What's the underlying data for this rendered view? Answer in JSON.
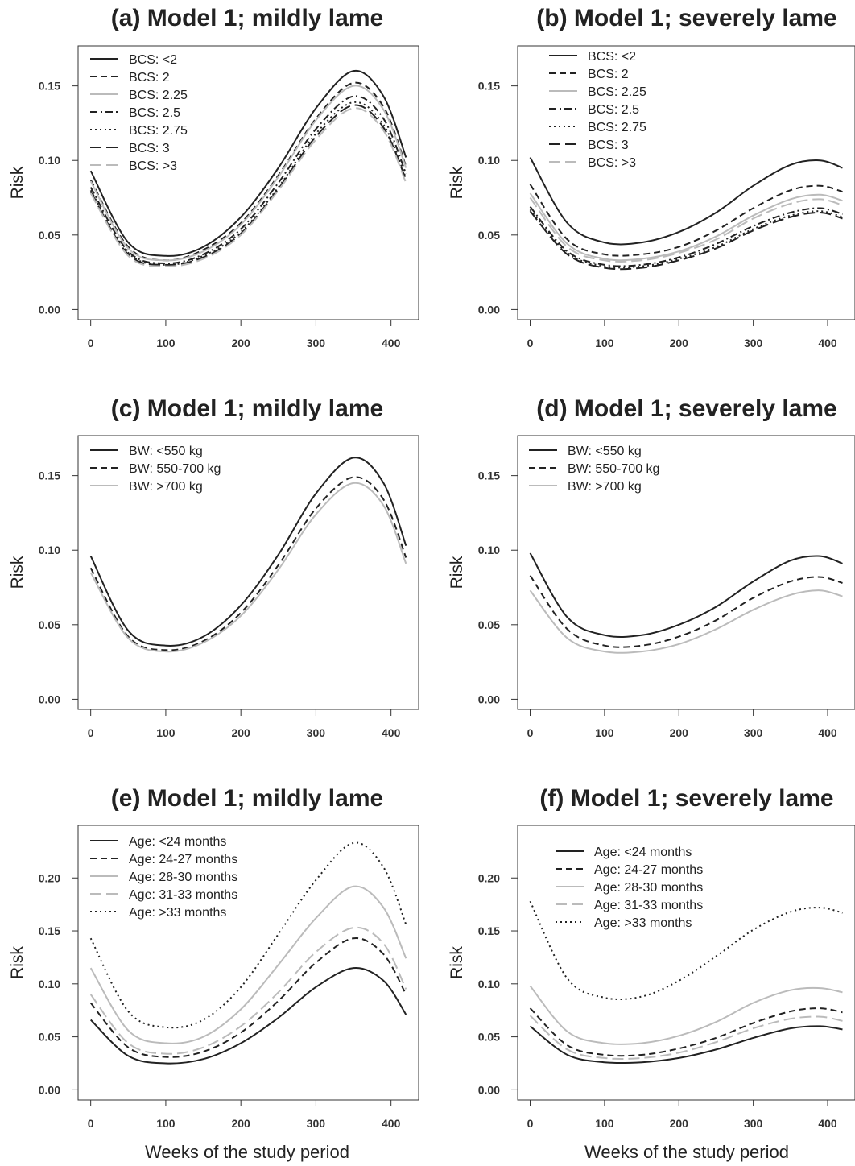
{
  "chart_data": [
    {
      "type": "line",
      "title": "(a) Model 1; mildly lame",
      "ylabel": "Risk",
      "xlabel": "",
      "xlim": [
        0,
        420
      ],
      "ylim": [
        0,
        0.17
      ],
      "xticks": [
        "0",
        "100",
        "200",
        "300",
        "400"
      ],
      "yticks": [
        "0.00",
        "0.05",
        "0.10",
        "0.15"
      ],
      "legend": "top-left",
      "grid": false,
      "series": [
        {
          "name": "BCS: <2",
          "style": "solid",
          "color": "#222222",
          "x": [
            0,
            50,
            100,
            150,
            200,
            250,
            300,
            350,
            390,
            420
          ],
          "y": [
            0.093,
            0.045,
            0.036,
            0.042,
            0.062,
            0.095,
            0.135,
            0.16,
            0.143,
            0.102
          ]
        },
        {
          "name": "BCS: 2",
          "style": "dashed",
          "color": "#222222",
          "x": [
            0,
            50,
            100,
            150,
            200,
            250,
            300,
            350,
            390,
            420
          ],
          "y": [
            0.087,
            0.042,
            0.033,
            0.04,
            0.058,
            0.09,
            0.128,
            0.152,
            0.136,
            0.096
          ]
        },
        {
          "name": "BCS: 2.25",
          "style": "solid",
          "color": "#bbbbbb",
          "x": [
            0,
            50,
            100,
            150,
            200,
            250,
            300,
            350,
            390,
            420
          ],
          "y": [
            0.086,
            0.041,
            0.033,
            0.039,
            0.057,
            0.089,
            0.127,
            0.15,
            0.134,
            0.095
          ]
        },
        {
          "name": "BCS: 2.5",
          "style": "dashdot",
          "color": "#222222",
          "x": [
            0,
            50,
            100,
            150,
            200,
            250,
            300,
            350,
            390,
            420
          ],
          "y": [
            0.082,
            0.039,
            0.031,
            0.037,
            0.054,
            0.085,
            0.121,
            0.143,
            0.128,
            0.091
          ]
        },
        {
          "name": "BCS: 2.75",
          "style": "dotted",
          "color": "#222222",
          "x": [
            0,
            50,
            100,
            150,
            200,
            250,
            300,
            350,
            390,
            420
          ],
          "y": [
            0.08,
            0.038,
            0.03,
            0.036,
            0.052,
            0.082,
            0.118,
            0.139,
            0.124,
            0.088
          ]
        },
        {
          "name": "BCS: 3",
          "style": "longdash",
          "color": "#222222",
          "x": [
            0,
            50,
            100,
            150,
            200,
            250,
            300,
            350,
            390,
            420
          ],
          "y": [
            0.079,
            0.037,
            0.03,
            0.035,
            0.051,
            0.081,
            0.116,
            0.137,
            0.122,
            0.087
          ]
        },
        {
          "name": "BCS: >3",
          "style": "longdash",
          "color": "#bbbbbb",
          "x": [
            0,
            50,
            100,
            150,
            200,
            250,
            300,
            350,
            390,
            420
          ],
          "y": [
            0.078,
            0.036,
            0.029,
            0.034,
            0.05,
            0.08,
            0.114,
            0.135,
            0.12,
            0.085
          ]
        }
      ]
    },
    {
      "type": "line",
      "title": "(b) Model 1; severely lame",
      "ylabel": "Risk",
      "xlabel": "",
      "xlim": [
        0,
        420
      ],
      "ylim": [
        0,
        0.17
      ],
      "xticks": [
        "0",
        "100",
        "200",
        "300",
        "400"
      ],
      "yticks": [
        "0.00",
        "0.05",
        "0.10",
        "0.15"
      ],
      "legend": "top-left",
      "grid": false,
      "series": [
        {
          "name": "BCS: <2",
          "style": "solid",
          "color": "#222222",
          "x": [
            0,
            50,
            100,
            150,
            200,
            250,
            300,
            350,
            390,
            420
          ],
          "y": [
            0.102,
            0.058,
            0.045,
            0.045,
            0.052,
            0.065,
            0.083,
            0.097,
            0.1,
            0.095
          ]
        },
        {
          "name": "BCS: 2",
          "style": "dashed",
          "color": "#222222",
          "x": [
            0,
            50,
            100,
            150,
            200,
            250,
            300,
            350,
            390,
            420
          ],
          "y": [
            0.084,
            0.047,
            0.037,
            0.037,
            0.042,
            0.053,
            0.068,
            0.08,
            0.083,
            0.079
          ]
        },
        {
          "name": "BCS: 2.25",
          "style": "solid",
          "color": "#bbbbbb",
          "x": [
            0,
            50,
            100,
            150,
            200,
            250,
            300,
            350,
            390,
            420
          ],
          "y": [
            0.078,
            0.044,
            0.034,
            0.034,
            0.039,
            0.049,
            0.063,
            0.074,
            0.077,
            0.073
          ]
        },
        {
          "name": "BCS: 2.5",
          "style": "dashdot",
          "color": "#222222",
          "x": [
            0,
            50,
            100,
            150,
            200,
            250,
            300,
            350,
            390,
            420
          ],
          "y": [
            0.069,
            0.039,
            0.03,
            0.03,
            0.035,
            0.044,
            0.056,
            0.065,
            0.068,
            0.064
          ]
        },
        {
          "name": "BCS: 2.75",
          "style": "dotted",
          "color": "#222222",
          "x": [
            0,
            50,
            100,
            150,
            200,
            250,
            300,
            350,
            390,
            420
          ],
          "y": [
            0.067,
            0.038,
            0.029,
            0.029,
            0.034,
            0.042,
            0.054,
            0.063,
            0.066,
            0.062
          ]
        },
        {
          "name": "BCS: 3",
          "style": "longdash",
          "color": "#222222",
          "x": [
            0,
            50,
            100,
            150,
            200,
            250,
            300,
            350,
            390,
            420
          ],
          "y": [
            0.066,
            0.037,
            0.028,
            0.028,
            0.033,
            0.041,
            0.053,
            0.062,
            0.065,
            0.061
          ]
        },
        {
          "name": "BCS: >3",
          "style": "longdash",
          "color": "#bbbbbb",
          "x": [
            0,
            50,
            100,
            150,
            200,
            250,
            300,
            350,
            390,
            420
          ],
          "y": [
            0.075,
            0.042,
            0.033,
            0.033,
            0.038,
            0.047,
            0.061,
            0.071,
            0.074,
            0.07
          ]
        }
      ]
    },
    {
      "type": "line",
      "title": "(c) Model 1; mildly lame",
      "ylabel": "Risk",
      "xlabel": "",
      "xlim": [
        0,
        420
      ],
      "ylim": [
        0,
        0.17
      ],
      "xticks": [
        "0",
        "100",
        "200",
        "300",
        "400"
      ],
      "yticks": [
        "0.00",
        "0.05",
        "0.10",
        "0.15"
      ],
      "legend": "top-left",
      "grid": false,
      "series": [
        {
          "name": "BW: <550 kg",
          "style": "solid",
          "color": "#222222",
          "x": [
            0,
            50,
            100,
            150,
            200,
            250,
            300,
            350,
            390,
            420
          ],
          "y": [
            0.096,
            0.046,
            0.036,
            0.042,
            0.063,
            0.097,
            0.138,
            0.162,
            0.145,
            0.103
          ]
        },
        {
          "name": "BW: 550-700 kg",
          "style": "dashed",
          "color": "#222222",
          "x": [
            0,
            50,
            100,
            150,
            200,
            250,
            300,
            350,
            390,
            420
          ],
          "y": [
            0.088,
            0.042,
            0.033,
            0.039,
            0.058,
            0.09,
            0.128,
            0.149,
            0.134,
            0.095
          ]
        },
        {
          "name": "BW: >700 kg",
          "style": "solid",
          "color": "#bbbbbb",
          "x": [
            0,
            50,
            100,
            150,
            200,
            250,
            300,
            350,
            390,
            420
          ],
          "y": [
            0.085,
            0.041,
            0.032,
            0.038,
            0.056,
            0.087,
            0.124,
            0.145,
            0.13,
            0.091
          ]
        }
      ]
    },
    {
      "type": "line",
      "title": "(d) Model 1; severely lame",
      "ylabel": "Risk",
      "xlabel": "",
      "xlim": [
        0,
        420
      ],
      "ylim": [
        0,
        0.17
      ],
      "xticks": [
        "0",
        "100",
        "200",
        "300",
        "400"
      ],
      "yticks": [
        "0.00",
        "0.05",
        "0.10",
        "0.15"
      ],
      "legend": "top-left",
      "grid": false,
      "series": [
        {
          "name": "BW: <550 kg",
          "style": "solid",
          "color": "#222222",
          "x": [
            0,
            50,
            100,
            150,
            200,
            250,
            300,
            350,
            390,
            420
          ],
          "y": [
            0.098,
            0.055,
            0.043,
            0.043,
            0.05,
            0.062,
            0.079,
            0.093,
            0.096,
            0.091
          ]
        },
        {
          "name": "BW: 550-700 kg",
          "style": "dashed",
          "color": "#222222",
          "x": [
            0,
            50,
            100,
            150,
            200,
            250,
            300,
            350,
            390,
            420
          ],
          "y": [
            0.083,
            0.047,
            0.036,
            0.036,
            0.042,
            0.053,
            0.068,
            0.079,
            0.082,
            0.078
          ]
        },
        {
          "name": "BW: >700 kg",
          "style": "solid",
          "color": "#bbbbbb",
          "x": [
            0,
            50,
            100,
            150,
            200,
            250,
            300,
            350,
            390,
            420
          ],
          "y": [
            0.073,
            0.041,
            0.032,
            0.032,
            0.037,
            0.047,
            0.06,
            0.07,
            0.073,
            0.069
          ]
        }
      ]
    },
    {
      "type": "line",
      "title": "(e) Model 1; mildly lame",
      "ylabel": "Risk",
      "xlabel": "Weeks of the study period",
      "xlim": [
        0,
        420
      ],
      "ylim": [
        0,
        0.24
      ],
      "xticks": [
        "0",
        "100",
        "200",
        "300",
        "400"
      ],
      "yticks": [
        "0.00",
        "0.05",
        "0.10",
        "0.15",
        "0.20"
      ],
      "legend": "top-left",
      "grid": false,
      "series": [
        {
          "name": "Age: <24 months",
          "style": "solid",
          "color": "#222222",
          "x": [
            0,
            50,
            100,
            150,
            200,
            250,
            300,
            350,
            390,
            420
          ],
          "y": [
            0.066,
            0.032,
            0.025,
            0.029,
            0.044,
            0.068,
            0.097,
            0.115,
            0.103,
            0.071
          ]
        },
        {
          "name": "Age: 24-27 months",
          "style": "dashed",
          "color": "#222222",
          "x": [
            0,
            50,
            100,
            150,
            200,
            250,
            300,
            350,
            390,
            420
          ],
          "y": [
            0.082,
            0.04,
            0.031,
            0.036,
            0.054,
            0.084,
            0.12,
            0.143,
            0.128,
            0.09
          ]
        },
        {
          "name": "Age: 28-30 months",
          "style": "solid",
          "color": "#bbbbbb",
          "x": [
            0,
            50,
            100,
            150,
            200,
            250,
            300,
            350,
            390,
            420
          ],
          "y": [
            0.115,
            0.056,
            0.044,
            0.05,
            0.076,
            0.118,
            0.162,
            0.192,
            0.172,
            0.124
          ]
        },
        {
          "name": "Age: 31-33 months",
          "style": "longdash",
          "color": "#bbbbbb",
          "x": [
            0,
            50,
            100,
            150,
            200,
            250,
            300,
            350,
            390,
            420
          ],
          "y": [
            0.09,
            0.044,
            0.034,
            0.04,
            0.06,
            0.092,
            0.13,
            0.153,
            0.138,
            0.095
          ]
        },
        {
          "name": "Age: >33 months",
          "style": "dotted",
          "color": "#222222",
          "x": [
            0,
            50,
            100,
            150,
            200,
            250,
            300,
            350,
            390,
            420
          ],
          "y": [
            0.143,
            0.074,
            0.059,
            0.066,
            0.097,
            0.147,
            0.198,
            0.233,
            0.21,
            0.156
          ]
        }
      ]
    },
    {
      "type": "line",
      "title": "(f) Model 1; severely lame",
      "ylabel": "Risk",
      "xlabel": "Weeks of the study period",
      "xlim": [
        0,
        420
      ],
      "ylim": [
        0,
        0.24
      ],
      "xticks": [
        "0",
        "100",
        "200",
        "300",
        "400"
      ],
      "yticks": [
        "0.00",
        "0.05",
        "0.10",
        "0.15",
        "0.20"
      ],
      "legend": "top-left",
      "grid": false,
      "series": [
        {
          "name": "Age: <24 months",
          "style": "solid",
          "color": "#222222",
          "x": [
            0,
            50,
            100,
            150,
            200,
            250,
            300,
            350,
            390,
            420
          ],
          "y": [
            0.06,
            0.033,
            0.026,
            0.026,
            0.03,
            0.038,
            0.049,
            0.058,
            0.06,
            0.057
          ]
        },
        {
          "name": "Age: 24-27 months",
          "style": "dashed",
          "color": "#222222",
          "x": [
            0,
            50,
            100,
            150,
            200,
            250,
            300,
            350,
            390,
            420
          ],
          "y": [
            0.077,
            0.042,
            0.033,
            0.033,
            0.039,
            0.049,
            0.063,
            0.074,
            0.077,
            0.073
          ]
        },
        {
          "name": "Age: 28-30 months",
          "style": "solid",
          "color": "#bbbbbb",
          "x": [
            0,
            50,
            100,
            150,
            200,
            250,
            300,
            350,
            390,
            420
          ],
          "y": [
            0.098,
            0.055,
            0.044,
            0.044,
            0.051,
            0.064,
            0.082,
            0.094,
            0.096,
            0.092
          ]
        },
        {
          "name": "Age: 31-33 months",
          "style": "longdash",
          "color": "#bbbbbb",
          "x": [
            0,
            50,
            100,
            150,
            200,
            250,
            300,
            350,
            390,
            420
          ],
          "y": [
            0.07,
            0.038,
            0.03,
            0.03,
            0.035,
            0.045,
            0.058,
            0.067,
            0.069,
            0.065
          ]
        },
        {
          "name": "Age: >33 months",
          "style": "dotted",
          "color": "#222222",
          "x": [
            0,
            50,
            100,
            150,
            200,
            250,
            300,
            350,
            390,
            420
          ],
          "y": [
            0.178,
            0.105,
            0.087,
            0.088,
            0.103,
            0.126,
            0.151,
            0.168,
            0.172,
            0.167
          ]
        }
      ]
    }
  ]
}
